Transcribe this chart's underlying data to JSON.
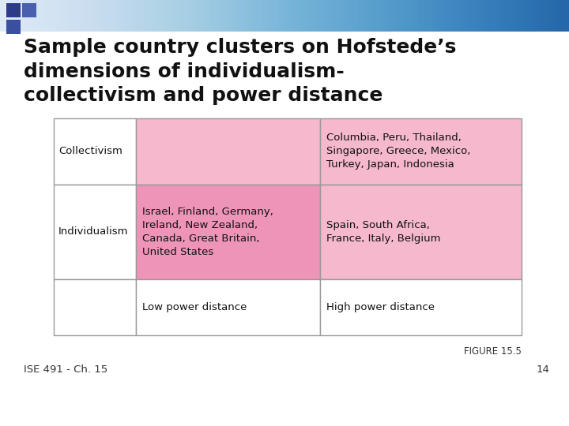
{
  "title": "Sample country clusters on Hofstede’s\ndimensions of individualism-\ncollectivism and power distance",
  "title_fontsize": 18,
  "title_color": "#111111",
  "bg_color": "#ffffff",
  "figure_label": "FIGURE 15.5",
  "page_number": "14",
  "footer_left": "ISE 491 - Ch. 15",
  "cell_pink_light": "#f5b8cc",
  "cell_pink_medium": "#ee94b8",
  "cell_white": "#ffffff",
  "border_color": "#999999",
  "table": {
    "cells": [
      [
        "Collectivism",
        "",
        "Columbia, Peru, Thailand,\nSingapore, Greece, Mexico,\nTurkey, Japan, Indonesia"
      ],
      [
        "Individualism",
        "Israel, Finland, Germany,\nIreland, New Zealand,\nCanada, Great Britain,\nUnited States",
        "Spain, South Africa,\nFrance, Italy, Belgium"
      ],
      [
        "",
        "Low power distance",
        "High power distance"
      ]
    ],
    "cell_colors": [
      [
        "#ffffff",
        "#f5b8cc",
        "#f5b8cc"
      ],
      [
        "#ffffff",
        "#ee94b8",
        "#f5b8cc"
      ],
      [
        "#ffffff",
        "#ffffff",
        "#ffffff"
      ]
    ]
  }
}
